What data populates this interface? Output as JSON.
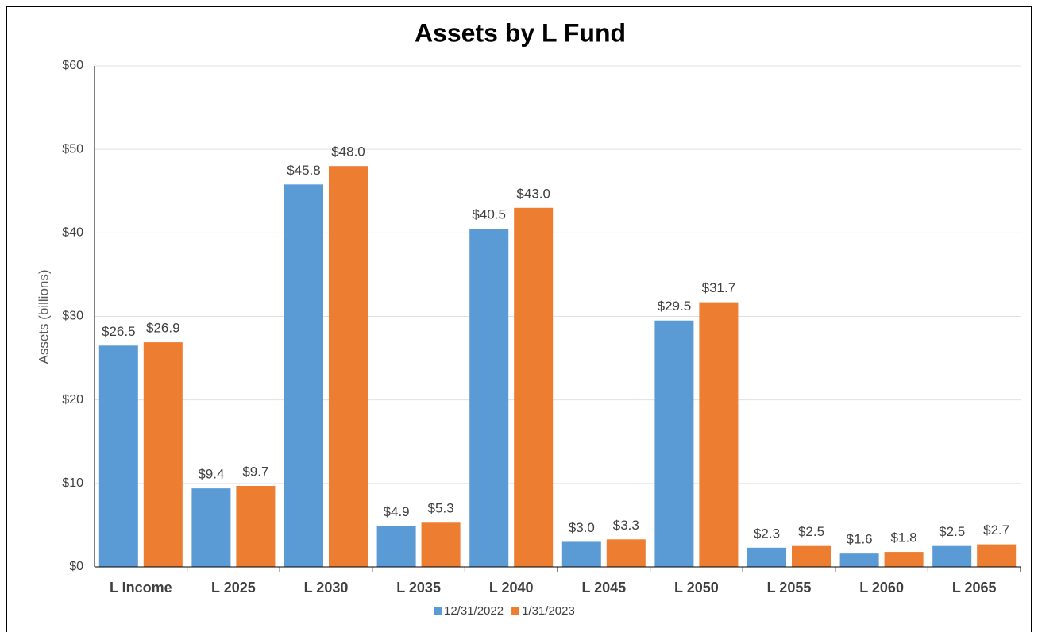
{
  "chart_data": {
    "type": "bar",
    "title": "Assets by L Fund",
    "y_label": "Assets (billions)",
    "categories": [
      "L Income",
      "L 2025",
      "L 2030",
      "L 2035",
      "L 2040",
      "L 2045",
      "L 2050",
      "L 2055",
      "L 2060",
      "L 2065"
    ],
    "series": [
      {
        "name": "12/31/2022",
        "color": "#5b9bd5",
        "values": [
          26.5,
          9.4,
          45.8,
          4.9,
          40.5,
          3.0,
          29.5,
          2.3,
          1.6,
          2.5
        ],
        "value_labels": [
          "$26.5",
          "$9.4",
          "$45.8",
          "$4.9",
          "$40.5",
          "$3.0",
          "$29.5",
          "$2.3",
          "$1.6",
          "$2.5"
        ]
      },
      {
        "name": "1/31/2023",
        "color": "#ed7d31",
        "values": [
          26.9,
          9.7,
          48.0,
          5.3,
          43.0,
          3.3,
          31.7,
          2.5,
          1.8,
          2.7
        ],
        "value_labels": [
          "$26.9",
          "$9.7",
          "$48.0",
          "$5.3",
          "$43.0",
          "$3.3",
          "$31.7",
          "$2.5",
          "$1.8",
          "$2.7"
        ]
      }
    ],
    "ylim": [
      0,
      60
    ],
    "yticks": [
      {
        "value": 0,
        "label": "$0"
      },
      {
        "value": 10,
        "label": "$10"
      },
      {
        "value": 20,
        "label": "$20"
      },
      {
        "value": 30,
        "label": "$30"
      },
      {
        "value": 40,
        "label": "$40"
      },
      {
        "value": 50,
        "label": "$50"
      },
      {
        "value": 60,
        "label": "$60"
      }
    ],
    "grid": true,
    "legend": "bottom"
  }
}
